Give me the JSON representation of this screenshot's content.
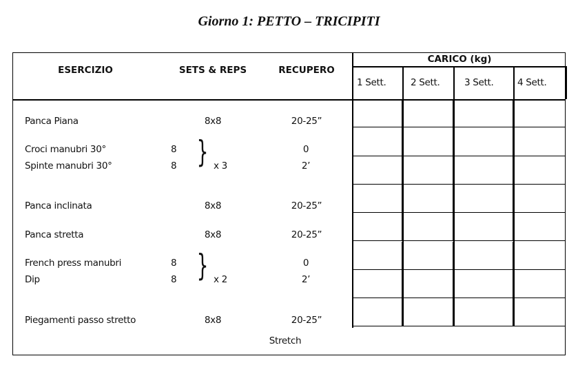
{
  "title": "Giorno 1: PETTO – TRICIPITI",
  "headers": {
    "exercise": "ESERCIZIO",
    "sets_reps": "SETS & REPS",
    "rest": "RECUPERO",
    "load": "CARICO (kg)",
    "weeks": [
      "1 Sett.",
      "2 Sett.",
      "3 Sett.",
      "4 Sett."
    ]
  },
  "rows": [
    {
      "type": "single",
      "name": "Panca Piana",
      "sets": "8x8",
      "rest": "20-25”"
    },
    {
      "type": "superset",
      "names": [
        "Croci manubri 30°",
        "Spinte manubri 30°"
      ],
      "reps": [
        "8",
        "8"
      ],
      "sets": "x 3",
      "rest": [
        "0",
        "2’"
      ]
    },
    {
      "type": "single",
      "name": "Panca inclinata",
      "sets": "8x8",
      "rest": "20-25”"
    },
    {
      "type": "single",
      "name": "Panca stretta",
      "sets": "8x8",
      "rest": "20-25”"
    },
    {
      "type": "superset",
      "names": [
        "French press manubri",
        "Dip"
      ],
      "reps": [
        "8",
        "8"
      ],
      "sets": "x 2",
      "rest": [
        "0",
        "2’"
      ]
    },
    {
      "type": "single",
      "name": "Piegamenti passo stretto",
      "sets": "8x8",
      "rest": "20-25”"
    }
  ],
  "footer": "Stretch",
  "load_grid_rows": 8
}
